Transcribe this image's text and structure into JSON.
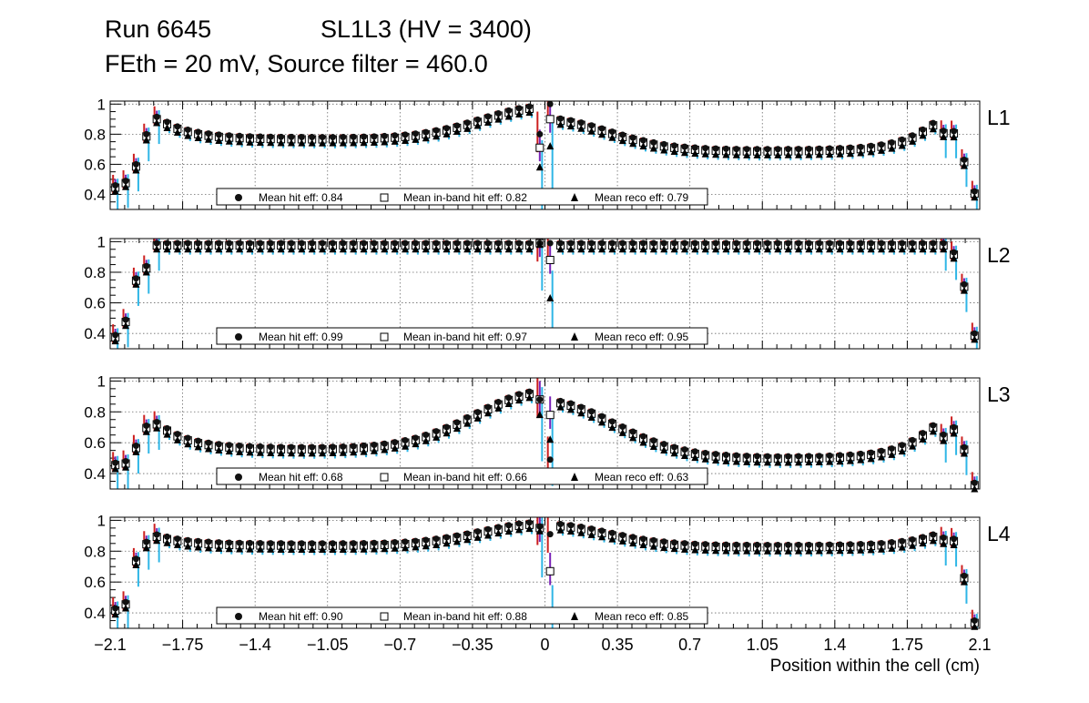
{
  "title": {
    "run": "Run 6645",
    "chamber": "SL1L3 (HV = 3400)",
    "line2": "FEth = 20 mV, Source filter = 460.0"
  },
  "colors": {
    "hit_err": "#cc1f1f",
    "inband_err": "#7a22b8",
    "reco_err": "#2fb6e6",
    "grid": "#6b6b6b",
    "marker": "#000000"
  },
  "chart_data": {
    "type": "scatter",
    "xlabel": "Position within the cell (cm)",
    "xlim": [
      -2.1,
      2.1
    ],
    "x_ticks": [
      "−2.1",
      "−1.75",
      "−1.4",
      "−1.05",
      "−0.7",
      "−0.35",
      "0",
      "0.35",
      "0.7",
      "1.05",
      "1.4",
      "1.75",
      "2.1"
    ],
    "ylim": [
      0.3,
      1.02
    ],
    "y_ticks": [
      "0.4",
      "0.6",
      "0.8",
      "1"
    ],
    "bin_width": 0.05,
    "legend_labels": {
      "hit": "Mean hit  eff: ",
      "inband": "Mean in-band hit eff: ",
      "reco": "Mean reco eff: "
    },
    "panels": [
      {
        "label": "L1",
        "mean_hit": "0.84",
        "mean_inband": "0.82",
        "mean_reco": "0.79",
        "shape": {
          "edge": [
            0.46,
            0.49,
            0.6,
            0.8
          ],
          "base": 0.78,
          "hump": 0.21,
          "width": 0.3,
          "right_base": 0.7,
          "peak_l": 0.92,
          "peak_r": 0.88,
          "drop": [
            0.82,
            0.63,
            0.42
          ]
        },
        "center": {
          "hit_l": 0.8,
          "inband_l": 0.71,
          "reco_l": 0.58,
          "hit_r": 1.0,
          "inband_r": 0.9,
          "reco_r": 0.72
        }
      },
      {
        "label": "L2",
        "mean_hit": "0.99",
        "mean_inband": "0.97",
        "mean_reco": "0.95",
        "shape": {
          "edge": [
            0.39,
            0.49,
            0.76,
            0.84
          ],
          "base": 0.99,
          "hump": 0.0,
          "width": 0.3,
          "right_base": 0.99,
          "peak_l": 0.99,
          "peak_r": 0.98,
          "drop": [
            0.93,
            0.72,
            0.4
          ]
        },
        "center": {
          "hit_l": 0.99,
          "inband_l": 0.99,
          "reco_l": 0.98,
          "hit_r": 0.99,
          "inband_r": 0.88,
          "reco_r": 0.63
        }
      },
      {
        "label": "L3",
        "mean_hit": "0.68",
        "mean_inband": "0.66",
        "mean_reco": "0.63",
        "shape": {
          "edge": [
            0.47,
            0.48,
            0.58,
            0.71
          ],
          "base": 0.57,
          "hump": 0.37,
          "width": 0.33,
          "right_base": 0.51,
          "peak_l": 0.74,
          "peak_r": 0.72,
          "drop": [
            0.7,
            0.57,
            0.34
          ]
        },
        "center": {
          "hit_l": 0.88,
          "inband_l": 0.88,
          "reco_l": 0.78,
          "hit_r": 0.49,
          "inband_r": 0.78,
          "reco_r": 0.62
        }
      },
      {
        "label": "L4",
        "mean_hit": "0.90",
        "mean_inband": "0.88",
        "mean_reco": "0.85",
        "shape": {
          "edge": [
            0.43,
            0.47,
            0.75,
            0.86
          ],
          "base": 0.85,
          "hump": 0.14,
          "width": 0.3,
          "right_base": 0.84,
          "peak_l": 0.91,
          "peak_r": 0.91,
          "drop": [
            0.88,
            0.64,
            0.35
          ]
        },
        "center": {
          "hit_l": 0.96,
          "inband_l": 0.95,
          "reco_l": 0.93,
          "hit_r": 0.91,
          "inband_r": 0.67,
          "reco_r": 0.4
        }
      }
    ]
  }
}
